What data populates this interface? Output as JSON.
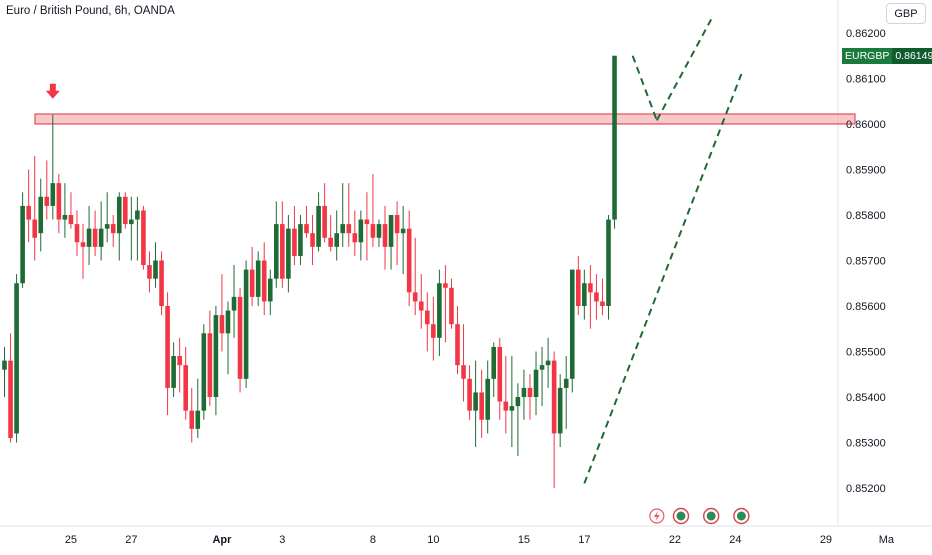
{
  "header": {
    "title": "Euro / British Pound, 6h, OANDA",
    "currency": "GBP"
  },
  "price_label": {
    "symbol": "EURGBP",
    "value": "0.86149"
  },
  "colors": {
    "up": "#1e6b35",
    "down": "#f23645",
    "zone_fill": "#f5b5ba",
    "zone_border": "#e0303f",
    "trend": "#1e6b35",
    "arrow": "#f23645",
    "axis_text": "#131722"
  },
  "chart_data": {
    "type": "candlestick",
    "symbol": "EURGBP",
    "timeframe": "6h",
    "ylim": [
      0.8515,
      0.8625
    ],
    "y_ticks": [
      "0.86200",
      "0.86100",
      "0.86000",
      "0.85900",
      "0.85800",
      "0.85700",
      "0.85600",
      "0.85500",
      "0.85400",
      "0.85300",
      "0.85200"
    ],
    "x_ticks": [
      {
        "label": "25",
        "bar": 11
      },
      {
        "label": "27",
        "bar": 21
      },
      {
        "label": "Apr",
        "bar": 36
      },
      {
        "label": "3",
        "bar": 46
      },
      {
        "label": "8",
        "bar": 61
      },
      {
        "label": "10",
        "bar": 71
      },
      {
        "label": "15",
        "bar": 86
      },
      {
        "label": "17",
        "bar": 96
      },
      {
        "label": "22",
        "bar": 111
      },
      {
        "label": "24",
        "bar": 121
      },
      {
        "label": "29",
        "bar": 136
      },
      {
        "label": "Ma",
        "bar": 146
      }
    ],
    "candles": [
      [
        0.8546,
        0.8551,
        0.854,
        0.8548
      ],
      [
        0.8548,
        0.8554,
        0.853,
        0.8531
      ],
      [
        0.8532,
        0.8567,
        0.853,
        0.8565
      ],
      [
        0.8565,
        0.8585,
        0.8564,
        0.8582
      ],
      [
        0.8582,
        0.859,
        0.8574,
        0.8579
      ],
      [
        0.8579,
        0.8593,
        0.857,
        0.8575
      ],
      [
        0.8576,
        0.8588,
        0.8572,
        0.8584
      ],
      [
        0.8584,
        0.8592,
        0.8579,
        0.8582
      ],
      [
        0.8582,
        0.8602,
        0.8579,
        0.8587
      ],
      [
        0.8587,
        0.8589,
        0.8576,
        0.8579
      ],
      [
        0.8579,
        0.8587,
        0.8575,
        0.858
      ],
      [
        0.858,
        0.8585,
        0.8577,
        0.8578
      ],
      [
        0.8578,
        0.8581,
        0.8571,
        0.8574
      ],
      [
        0.8574,
        0.8578,
        0.8566,
        0.8573
      ],
      [
        0.8573,
        0.8582,
        0.8569,
        0.8577
      ],
      [
        0.8577,
        0.8581,
        0.8571,
        0.8573
      ],
      [
        0.8573,
        0.8583,
        0.857,
        0.8577
      ],
      [
        0.8577,
        0.8585,
        0.8574,
        0.8578
      ],
      [
        0.8578,
        0.858,
        0.8573,
        0.8576
      ],
      [
        0.8576,
        0.8585,
        0.857,
        0.8584
      ],
      [
        0.8584,
        0.8585,
        0.8577,
        0.8578
      ],
      [
        0.8578,
        0.8584,
        0.857,
        0.8579
      ],
      [
        0.8579,
        0.8584,
        0.857,
        0.8581
      ],
      [
        0.8581,
        0.8582,
        0.8568,
        0.8569
      ],
      [
        0.8569,
        0.8572,
        0.8563,
        0.8566
      ],
      [
        0.8566,
        0.8574,
        0.8564,
        0.857
      ],
      [
        0.857,
        0.8572,
        0.8558,
        0.856
      ],
      [
        0.856,
        0.8563,
        0.8536,
        0.8542
      ],
      [
        0.8542,
        0.8552,
        0.854,
        0.8549
      ],
      [
        0.8549,
        0.8553,
        0.8541,
        0.8547
      ],
      [
        0.8547,
        0.8551,
        0.8535,
        0.8537
      ],
      [
        0.8537,
        0.8542,
        0.853,
        0.8533
      ],
      [
        0.8533,
        0.8544,
        0.8531,
        0.8537
      ],
      [
        0.8537,
        0.8556,
        0.8535,
        0.8554
      ],
      [
        0.8554,
        0.8559,
        0.8538,
        0.854
      ],
      [
        0.854,
        0.856,
        0.8536,
        0.8558
      ],
      [
        0.8558,
        0.8567,
        0.855,
        0.8554
      ],
      [
        0.8554,
        0.8561,
        0.8545,
        0.8559
      ],
      [
        0.8559,
        0.8569,
        0.8553,
        0.8562
      ],
      [
        0.8562,
        0.8564,
        0.8541,
        0.8544
      ],
      [
        0.8544,
        0.857,
        0.8542,
        0.8568
      ],
      [
        0.8568,
        0.8573,
        0.856,
        0.8562
      ],
      [
        0.8562,
        0.8572,
        0.856,
        0.857
      ],
      [
        0.857,
        0.8574,
        0.8558,
        0.8561
      ],
      [
        0.8561,
        0.8568,
        0.8558,
        0.8566
      ],
      [
        0.8566,
        0.8583,
        0.8564,
        0.8578
      ],
      [
        0.8578,
        0.8583,
        0.8564,
        0.8566
      ],
      [
        0.8566,
        0.858,
        0.8563,
        0.8577
      ],
      [
        0.8577,
        0.8582,
        0.8569,
        0.8571
      ],
      [
        0.8571,
        0.858,
        0.8569,
        0.8578
      ],
      [
        0.8578,
        0.8582,
        0.8575,
        0.8576
      ],
      [
        0.8576,
        0.858,
        0.8569,
        0.8573
      ],
      [
        0.8573,
        0.8585,
        0.8572,
        0.8582
      ],
      [
        0.8582,
        0.8587,
        0.8574,
        0.8575
      ],
      [
        0.8575,
        0.858,
        0.8572,
        0.8573
      ],
      [
        0.8573,
        0.8581,
        0.857,
        0.8576
      ],
      [
        0.8576,
        0.8587,
        0.8573,
        0.8578
      ],
      [
        0.8578,
        0.8587,
        0.8573,
        0.8576
      ],
      [
        0.8576,
        0.8581,
        0.8571,
        0.8574
      ],
      [
        0.8574,
        0.8581,
        0.857,
        0.8579
      ],
      [
        0.8579,
        0.8585,
        0.857,
        0.8578
      ],
      [
        0.8578,
        0.8589,
        0.8573,
        0.8575
      ],
      [
        0.8575,
        0.8579,
        0.8573,
        0.8578
      ],
      [
        0.8578,
        0.8582,
        0.8568,
        0.8573
      ],
      [
        0.8573,
        0.8579,
        0.8568,
        0.858
      ],
      [
        0.858,
        0.8583,
        0.8569,
        0.8576
      ],
      [
        0.8576,
        0.8582,
        0.8567,
        0.8577
      ],
      [
        0.8577,
        0.8581,
        0.856,
        0.8563
      ],
      [
        0.8563,
        0.8575,
        0.8558,
        0.8561
      ],
      [
        0.8561,
        0.8567,
        0.8555,
        0.8559
      ],
      [
        0.8559,
        0.8563,
        0.855,
        0.8556
      ],
      [
        0.8556,
        0.8562,
        0.8548,
        0.8553
      ],
      [
        0.8553,
        0.8568,
        0.8549,
        0.8565
      ],
      [
        0.8565,
        0.8569,
        0.8552,
        0.8564
      ],
      [
        0.8564,
        0.8566,
        0.8555,
        0.8556
      ],
      [
        0.8556,
        0.856,
        0.8545,
        0.8547
      ],
      [
        0.8547,
        0.8556,
        0.8539,
        0.8544
      ],
      [
        0.8544,
        0.8547,
        0.8535,
        0.8537
      ],
      [
        0.8537,
        0.8548,
        0.8529,
        0.8541
      ],
      [
        0.8541,
        0.8546,
        0.8531,
        0.8535
      ],
      [
        0.8535,
        0.8548,
        0.8532,
        0.8544
      ],
      [
        0.8544,
        0.8552,
        0.854,
        0.8551
      ],
      [
        0.8551,
        0.8553,
        0.8535,
        0.8539
      ],
      [
        0.8539,
        0.8549,
        0.8532,
        0.8537
      ],
      [
        0.8537,
        0.8549,
        0.8529,
        0.8538
      ],
      [
        0.8538,
        0.8543,
        0.8527,
        0.854
      ],
      [
        0.854,
        0.8546,
        0.8535,
        0.8542
      ],
      [
        0.8542,
        0.8545,
        0.8535,
        0.854
      ],
      [
        0.854,
        0.855,
        0.8536,
        0.8546
      ],
      [
        0.8546,
        0.8551,
        0.8538,
        0.8547
      ],
      [
        0.8547,
        0.8553,
        0.8542,
        0.8548
      ],
      [
        0.8548,
        0.855,
        0.852,
        0.8532
      ],
      [
        0.8532,
        0.8545,
        0.8529,
        0.8542
      ],
      [
        0.8542,
        0.8549,
        0.8533,
        0.8544
      ],
      [
        0.8544,
        0.8568,
        0.8541,
        0.8568
      ],
      [
        0.8568,
        0.8571,
        0.8558,
        0.856
      ],
      [
        0.856,
        0.8568,
        0.8557,
        0.8565
      ],
      [
        0.8565,
        0.8569,
        0.8555,
        0.8563
      ],
      [
        0.8563,
        0.8567,
        0.8557,
        0.8561
      ],
      [
        0.8561,
        0.8566,
        0.8558,
        0.856
      ],
      [
        0.856,
        0.858,
        0.8557,
        0.8579
      ],
      [
        0.8579,
        0.8615,
        0.8577,
        0.8615
      ]
    ],
    "resistance_zone": {
      "low": 0.86008,
      "high": 0.86022
    },
    "marker_arrow": {
      "bar": 8,
      "price": 0.8604
    },
    "trend_lines": [
      {
        "from": [
          96,
          0.8521
        ],
        "to": [
          122,
          0.8611
        ]
      },
      {
        "from": [
          104,
          0.8615
        ],
        "to": [
          108,
          0.86008
        ]
      },
      {
        "from": [
          108,
          0.86008
        ],
        "to": [
          117,
          0.8623
        ]
      }
    ],
    "event_markers": [
      {
        "type": "flash",
        "bar": 108
      },
      {
        "type": "dot",
        "bar": 112
      },
      {
        "type": "dot",
        "bar": 117
      },
      {
        "type": "dot",
        "bar": 122
      }
    ]
  }
}
